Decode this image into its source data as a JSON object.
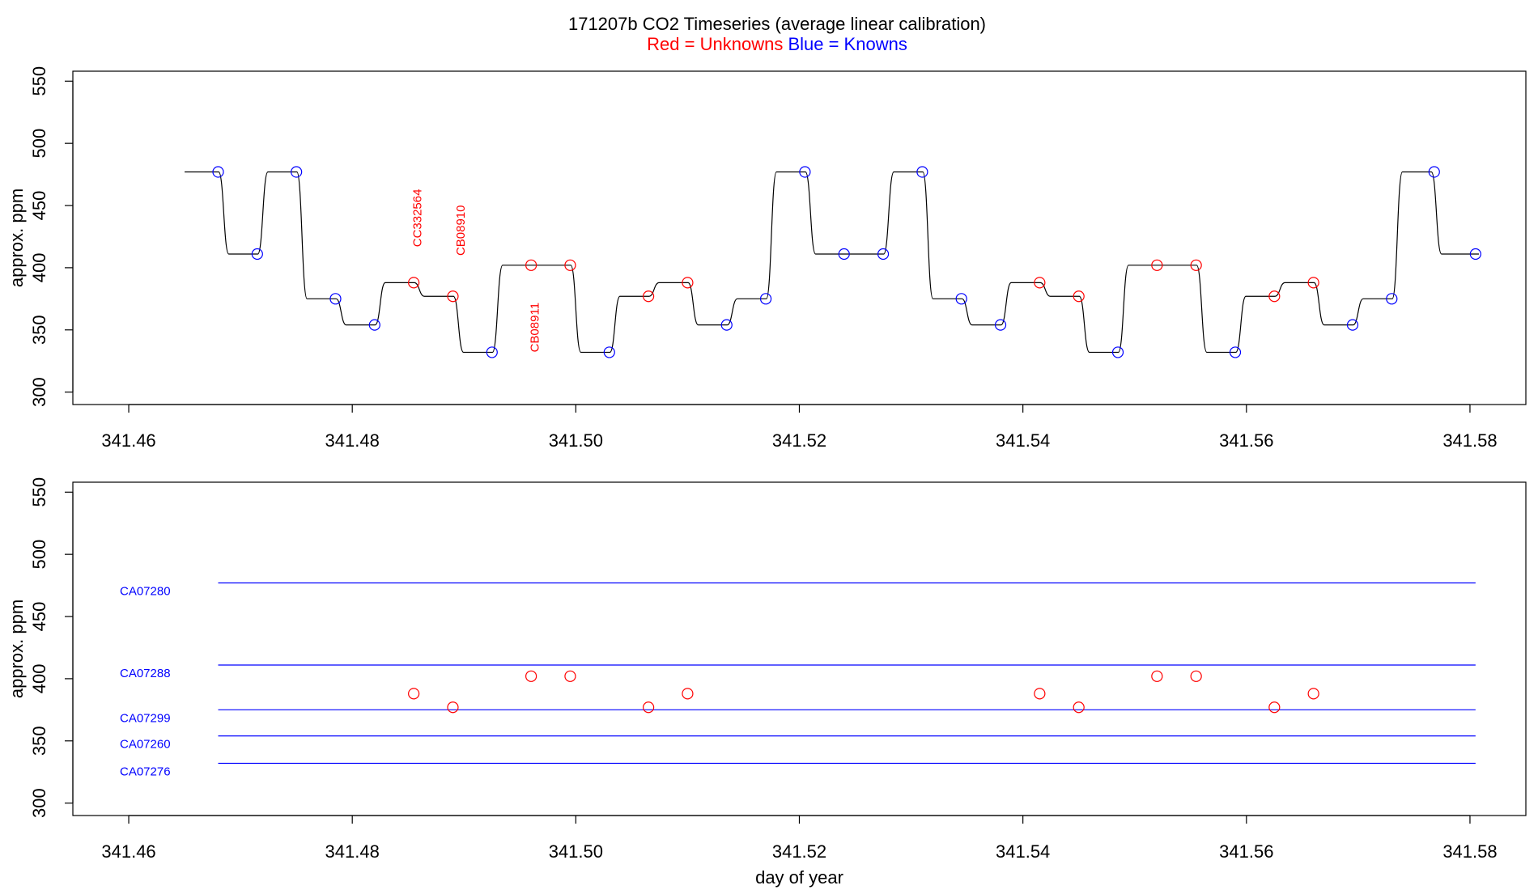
{
  "title": {
    "main": "171207b   CO2 Timeseries (average linear calibration)",
    "legend_red": "Red = Unknowns",
    "legend_blue": "Blue = Knowns"
  },
  "colors": {
    "unknown": "#ff0000",
    "known": "#0000ff",
    "trace": "#000000",
    "axis": "#000000"
  },
  "chart_data": [
    {
      "type": "line",
      "title": "171207b   CO2 Timeseries (average linear calibration)",
      "xlabel": "",
      "ylabel": "approx. ppm",
      "xlim": [
        341.455,
        341.585
      ],
      "ylim": [
        290,
        558
      ],
      "xticks": [
        341.46,
        341.48,
        341.5,
        341.52,
        341.54,
        341.56,
        341.58
      ],
      "xtick_labels": [
        "341.46",
        "341.48",
        "341.50",
        "341.52",
        "341.54",
        "341.56",
        "341.58"
      ],
      "yticks": [
        300,
        350,
        400,
        450,
        500,
        550
      ],
      "ytick_labels": [
        "300",
        "350",
        "400",
        "450",
        "500",
        "550"
      ],
      "grid": false,
      "legend": "none",
      "trace_levels": [
        {
          "x_start": 341.465,
          "x_end": 341.4685,
          "y": 477
        },
        {
          "x_start": 341.4685,
          "x_end": 341.472,
          "y": 411
        },
        {
          "x_start": 341.472,
          "x_end": 341.4755,
          "y": 477
        },
        {
          "x_start": 341.4755,
          "x_end": 341.479,
          "y": 375
        },
        {
          "x_start": 341.479,
          "x_end": 341.4825,
          "y": 354
        },
        {
          "x_start": 341.4825,
          "x_end": 341.486,
          "y": 388
        },
        {
          "x_start": 341.486,
          "x_end": 341.4895,
          "y": 377
        },
        {
          "x_start": 341.4895,
          "x_end": 341.493,
          "y": 332
        },
        {
          "x_start": 341.493,
          "x_end": 341.5,
          "y": 402
        },
        {
          "x_start": 341.5,
          "x_end": 341.5035,
          "y": 332
        },
        {
          "x_start": 341.5035,
          "x_end": 341.507,
          "y": 377
        },
        {
          "x_start": 341.507,
          "x_end": 341.5105,
          "y": 388
        },
        {
          "x_start": 341.5105,
          "x_end": 341.514,
          "y": 354
        },
        {
          "x_start": 341.514,
          "x_end": 341.5175,
          "y": 375
        },
        {
          "x_start": 341.5175,
          "x_end": 341.521,
          "y": 477
        },
        {
          "x_start": 341.521,
          "x_end": 341.528,
          "y": 411
        },
        {
          "x_start": 341.528,
          "x_end": 341.5315,
          "y": 477
        },
        {
          "x_start": 341.5315,
          "x_end": 341.535,
          "y": 375
        },
        {
          "x_start": 341.535,
          "x_end": 341.5385,
          "y": 354
        },
        {
          "x_start": 341.5385,
          "x_end": 341.542,
          "y": 388
        },
        {
          "x_start": 341.542,
          "x_end": 341.5455,
          "y": 377
        },
        {
          "x_start": 341.5455,
          "x_end": 341.549,
          "y": 332
        },
        {
          "x_start": 341.549,
          "x_end": 341.556,
          "y": 402
        },
        {
          "x_start": 341.556,
          "x_end": 341.5595,
          "y": 332
        },
        {
          "x_start": 341.5595,
          "x_end": 341.563,
          "y": 377
        },
        {
          "x_start": 341.563,
          "x_end": 341.5665,
          "y": 388
        },
        {
          "x_start": 341.5665,
          "x_end": 341.57,
          "y": 354
        },
        {
          "x_start": 341.57,
          "x_end": 341.5735,
          "y": 375
        },
        {
          "x_start": 341.5735,
          "x_end": 341.577,
          "y": 477
        },
        {
          "x_start": 341.577,
          "x_end": 341.5808,
          "y": 411
        }
      ],
      "series": [
        {
          "name": "Knowns",
          "color": "#0000ff",
          "points": [
            {
              "x": 341.468,
              "y": 477
            },
            {
              "x": 341.4715,
              "y": 411
            },
            {
              "x": 341.475,
              "y": 477
            },
            {
              "x": 341.4785,
              "y": 375
            },
            {
              "x": 341.482,
              "y": 354
            },
            {
              "x": 341.4925,
              "y": 332
            },
            {
              "x": 341.503,
              "y": 332
            },
            {
              "x": 341.5135,
              "y": 354
            },
            {
              "x": 341.517,
              "y": 375
            },
            {
              "x": 341.5205,
              "y": 477
            },
            {
              "x": 341.524,
              "y": 411
            },
            {
              "x": 341.5275,
              "y": 411
            },
            {
              "x": 341.531,
              "y": 477
            },
            {
              "x": 341.5345,
              "y": 375
            },
            {
              "x": 341.538,
              "y": 354
            },
            {
              "x": 341.5485,
              "y": 332
            },
            {
              "x": 341.559,
              "y": 332
            },
            {
              "x": 341.5695,
              "y": 354
            },
            {
              "x": 341.573,
              "y": 375
            },
            {
              "x": 341.5768,
              "y": 477
            },
            {
              "x": 341.5805,
              "y": 411
            }
          ]
        },
        {
          "name": "Unknowns",
          "color": "#ff0000",
          "points": [
            {
              "x": 341.4855,
              "y": 388
            },
            {
              "x": 341.489,
              "y": 377
            },
            {
              "x": 341.496,
              "y": 402
            },
            {
              "x": 341.4995,
              "y": 402
            },
            {
              "x": 341.5065,
              "y": 377
            },
            {
              "x": 341.51,
              "y": 388
            },
            {
              "x": 341.5415,
              "y": 388
            },
            {
              "x": 341.545,
              "y": 377
            },
            {
              "x": 341.552,
              "y": 402
            },
            {
              "x": 341.5555,
              "y": 402
            },
            {
              "x": 341.5625,
              "y": 377
            },
            {
              "x": 341.566,
              "y": 388
            }
          ]
        }
      ],
      "annotations": [
        {
          "text": "CC332564",
          "x": 341.4858,
          "y": 440,
          "color": "#ff0000",
          "orientation": "vertical"
        },
        {
          "text": "CB08910",
          "x": 341.4897,
          "y": 430,
          "color": "#ff0000",
          "orientation": "vertical"
        },
        {
          "text": "CB08911",
          "x": 341.4963,
          "y": 352,
          "color": "#ff0000",
          "orientation": "vertical"
        }
      ]
    },
    {
      "type": "scatter",
      "title": "",
      "xlabel": "day of year",
      "ylabel": "approx. ppm",
      "xlim": [
        341.455,
        341.585
      ],
      "ylim": [
        290,
        558
      ],
      "xticks": [
        341.46,
        341.48,
        341.5,
        341.52,
        341.54,
        341.56,
        341.58
      ],
      "xtick_labels": [
        "341.46",
        "341.48",
        "341.50",
        "341.52",
        "341.54",
        "341.56",
        "341.58"
      ],
      "yticks": [
        300,
        350,
        400,
        450,
        500,
        550
      ],
      "ytick_labels": [
        "300",
        "350",
        "400",
        "450",
        "500",
        "550"
      ],
      "grid": false,
      "legend": "none",
      "reference_lines": [
        {
          "label": "CA07280",
          "y": 477,
          "x_start": 341.468,
          "x_end": 341.5805
        },
        {
          "label": "CA07288",
          "y": 411,
          "x_start": 341.468,
          "x_end": 341.5805
        },
        {
          "label": "CA07299",
          "y": 375,
          "x_start": 341.468,
          "x_end": 341.5805
        },
        {
          "label": "CA07260",
          "y": 354,
          "x_start": 341.468,
          "x_end": 341.5805
        },
        {
          "label": "CA07276",
          "y": 332,
          "x_start": 341.468,
          "x_end": 341.5805
        }
      ],
      "series": [
        {
          "name": "Unknowns",
          "color": "#ff0000",
          "points": [
            {
              "x": 341.4855,
              "y": 388
            },
            {
              "x": 341.489,
              "y": 377
            },
            {
              "x": 341.496,
              "y": 402
            },
            {
              "x": 341.4995,
              "y": 402
            },
            {
              "x": 341.5065,
              "y": 377
            },
            {
              "x": 341.51,
              "y": 388
            },
            {
              "x": 341.5415,
              "y": 388
            },
            {
              "x": 341.545,
              "y": 377
            },
            {
              "x": 341.552,
              "y": 402
            },
            {
              "x": 341.5555,
              "y": 402
            },
            {
              "x": 341.5625,
              "y": 377
            },
            {
              "x": 341.566,
              "y": 388
            }
          ]
        }
      ]
    }
  ]
}
